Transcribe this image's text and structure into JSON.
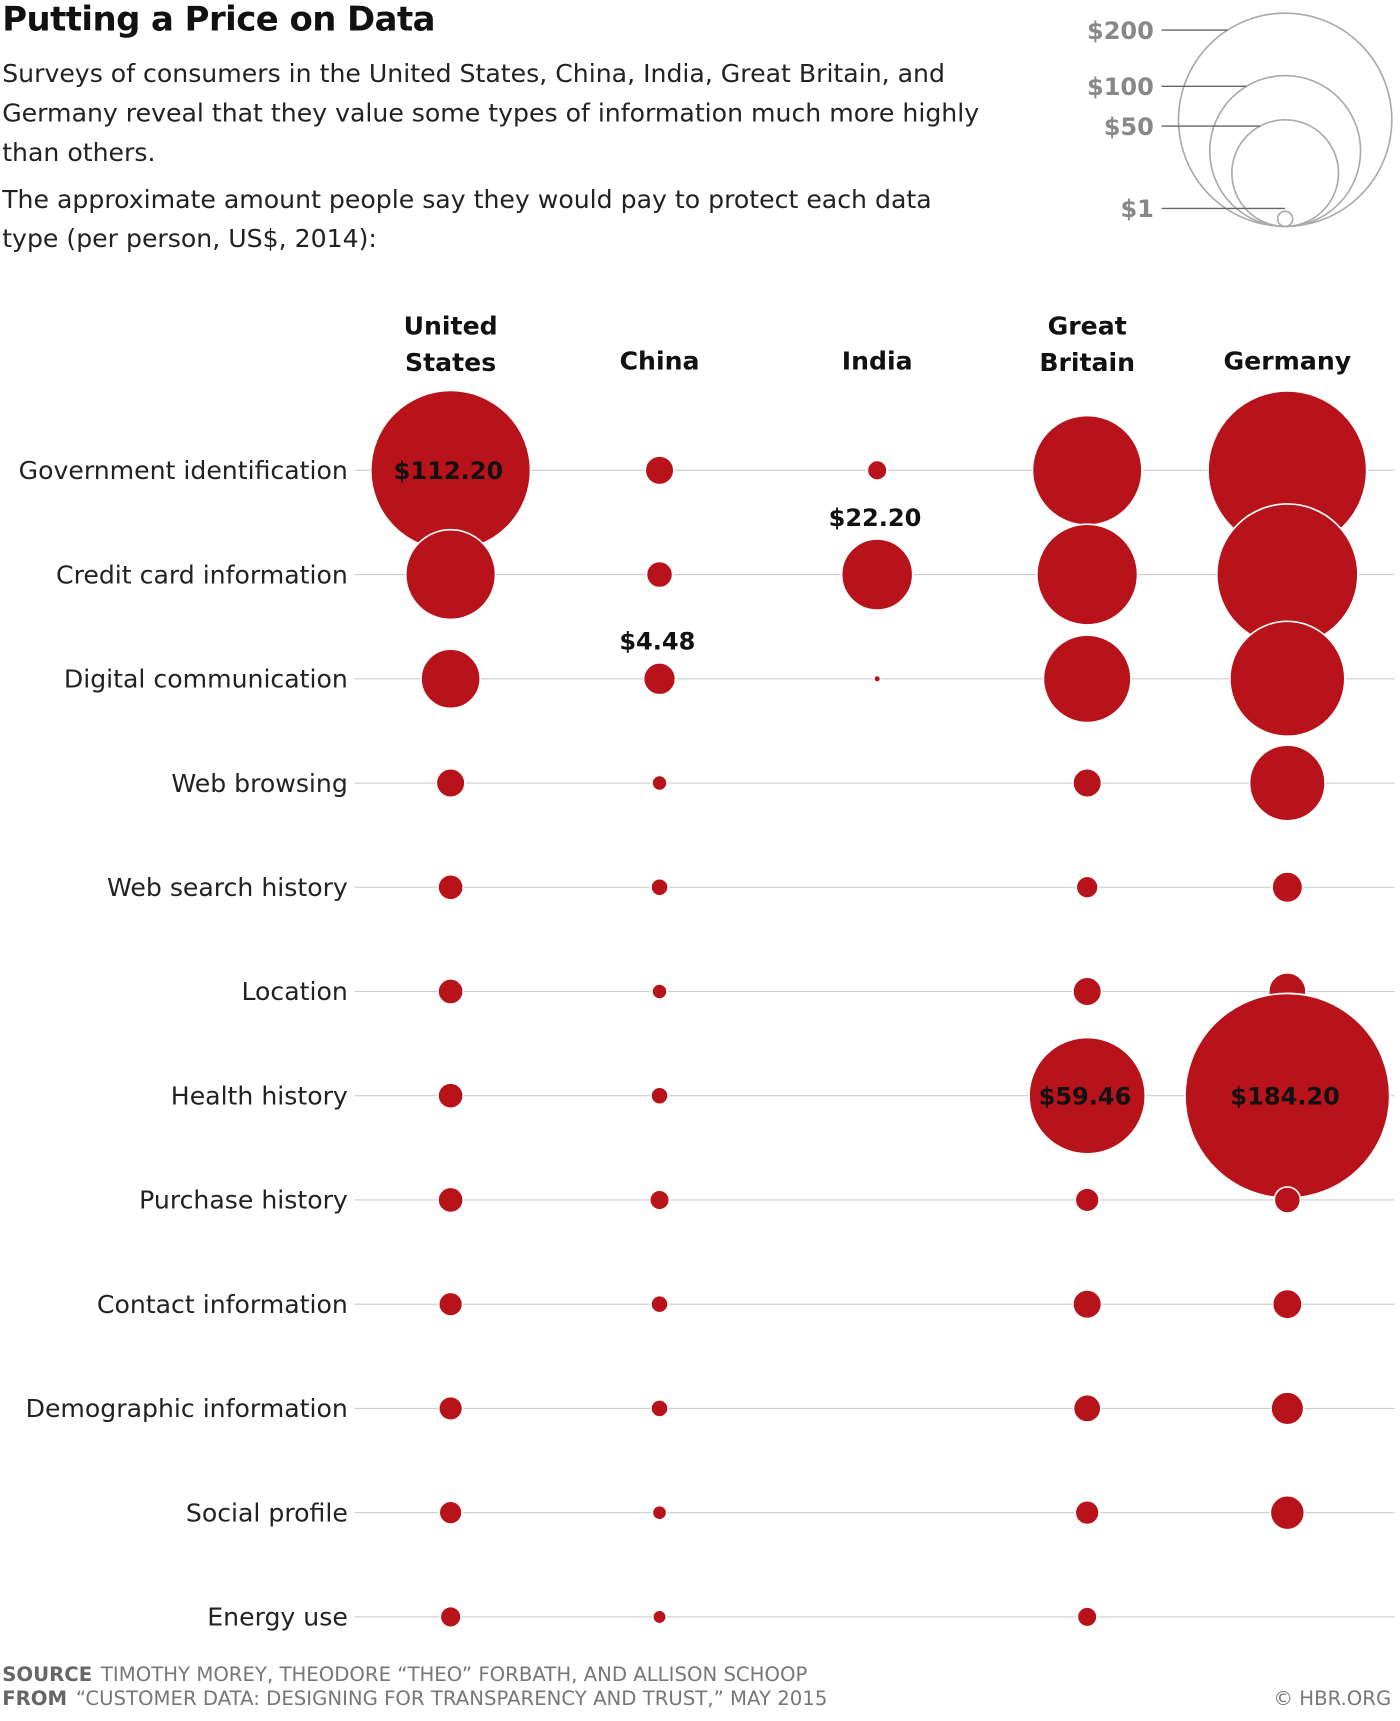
{
  "chart_data": {
    "type": "bubble",
    "title": "Putting a Price on Data",
    "subtitle": "Surveys of consumers in the United States, China, India, Great Britain, and Germany reveal that they value some types of information much more highly than others.",
    "subtitle2": "The approximate amount people say they would pay to protect each data type (per person, US$, 2014):",
    "columns": [
      "United States",
      "China",
      "India",
      "Great Britain",
      "Germany"
    ],
    "categories": [
      "Government identification",
      "Credit card information",
      "Digital communication",
      "Web browsing",
      "Web search history",
      "Location",
      "Health history",
      "Purchase history",
      "Contact information",
      "Demographic information",
      "Social profile",
      "Energy use"
    ],
    "color": "#b8131b",
    "series": [
      {
        "name": "United States",
        "values": [
          112.2,
          35.4,
          15.4,
          3.6,
          2.8,
          2.8,
          2.8,
          2.8,
          2.5,
          2.5,
          2.3,
          1.9
        ],
        "value_labels": [
          "$112.20",
          null,
          null,
          null,
          null,
          null,
          null,
          null,
          null,
          null,
          null,
          null
        ]
      },
      {
        "name": "China",
        "values": [
          3.6,
          3.0,
          4.48,
          1.0,
          1.3,
          1.0,
          1.3,
          1.7,
          1.3,
          1.3,
          0.9,
          0.8
        ],
        "value_labels": [
          null,
          null,
          "$4.48",
          null,
          null,
          null,
          null,
          null,
          null,
          null,
          null,
          null
        ]
      },
      {
        "name": "India",
        "values": [
          1.7,
          22.2,
          0.2,
          null,
          null,
          null,
          null,
          null,
          null,
          null,
          null,
          null
        ],
        "value_labels": [
          null,
          "$22.20",
          null,
          null,
          null,
          null,
          null,
          null,
          null,
          null,
          null,
          null
        ]
      },
      {
        "name": "Great Britain",
        "values": [
          52.7,
          44.6,
          33.7,
          3.6,
          2.1,
          3.6,
          59.46,
          2.5,
          3.6,
          3.3,
          2.5,
          1.7
        ],
        "value_labels": [
          null,
          null,
          null,
          null,
          null,
          null,
          "$59.46",
          null,
          null,
          null,
          null,
          null
        ]
      },
      {
        "name": "Germany",
        "values": [
          110.7,
          87.6,
          58.1,
          25.1,
          4.1,
          6.1,
          184.2,
          3.0,
          3.8,
          4.7,
          5.1,
          null
        ],
        "value_labels": [
          null,
          null,
          null,
          null,
          null,
          null,
          "$184.20",
          null,
          null,
          null,
          null,
          null
        ]
      }
    ],
    "size_legend": [
      {
        "value": 200,
        "label": "$200"
      },
      {
        "value": 100,
        "label": "$100"
      },
      {
        "value": 50,
        "label": "$50"
      },
      {
        "value": 1,
        "label": "$1"
      }
    ],
    "source_label": "SOURCE",
    "source": "TIMOTHY MOREY, THEODORE “THEO” FORBATH, AND ALLISON SCHOOP",
    "from_label": "FROM",
    "from": "“CUSTOMER DATA: DESIGNING FOR TRANSPARENCY AND TRUST,” MAY 2015",
    "credit": "© HBR.ORG"
  }
}
